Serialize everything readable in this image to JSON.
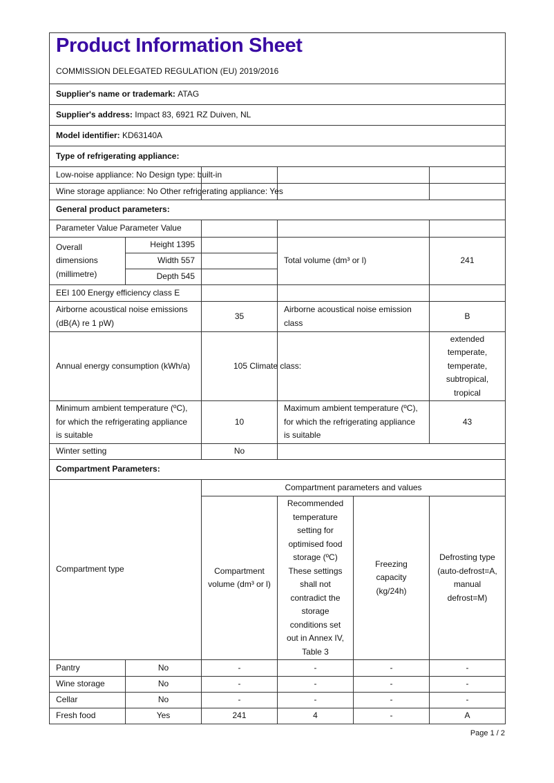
{
  "title": "Product Information Sheet",
  "subtitle": "COMMISSION DELEGATED REGULATION (EU) 2019/2016",
  "supplier_name": {
    "label": "Supplier's name or trademark:",
    "value": "ATAG"
  },
  "supplier_address": {
    "label": "Supplier's address:",
    "value": "Impact 83, 6921 RZ Duiven, NL"
  },
  "model": {
    "label": "Model identifier:",
    "value": "KD63140A"
  },
  "type_heading": "Type of refrigerating appliance:",
  "type_rows": [
    "Low-noise appliance: No Design type: built-in",
    "Wine storage appliance: No Other refrigerating appliance: Yes"
  ],
  "general_heading": "General product parameters:",
  "param_header": "Parameter Value Parameter Value",
  "dimensions": {
    "label": "Overall dimensions (millimetre)",
    "height": "Height 1395",
    "width": "Width 557",
    "depth": "Depth 545"
  },
  "total_volume": {
    "label": "Total volume (dm³ or l)",
    "value": "241"
  },
  "eei": "EEI 100 Energy efficiency class E",
  "noise": {
    "label": "Airborne acoustical noise emissions (dB(A) re 1 pW)",
    "value": "35",
    "class_label": "Airborne acoustical noise emission class",
    "class_value": "B"
  },
  "energy": {
    "label": "Annual energy consumption (kWh/a)",
    "value": "105 Climate class:",
    "climate": "extended temperate, temperate, subtropical, tropical"
  },
  "min_temp": {
    "label": "Minimum ambient temperature (ºC), for which the refrigerating appliance is suitable",
    "value": "10"
  },
  "max_temp": {
    "label": "Maximum ambient temperature (ºC), for which the refrigerating appliance is suitable",
    "value": "43"
  },
  "winter": {
    "label": "Winter setting",
    "value": "No"
  },
  "compartment_heading": "Compartment Parameters:",
  "compartment": {
    "type_label": "Compartment type",
    "group_header": "Compartment parameters and values",
    "columns": [
      "Compartment volume (dm³ or l)",
      "Recommended temperature setting for optimised food storage (ºC) These settings shall not contradict the storage conditions set out in Annex IV, Table 3",
      "Freezing capacity (kg/24h)",
      "Defrosting type (auto-defrost=A, manual defrost=M)"
    ],
    "rows": [
      [
        "Pantry",
        "No",
        "-",
        "-",
        "-",
        "-"
      ],
      [
        "Wine storage",
        "No",
        "-",
        "-",
        "-",
        "-"
      ],
      [
        "Cellar",
        "No",
        "-",
        "-",
        "-",
        "-"
      ],
      [
        "Fresh food",
        "Yes",
        "241",
        "4",
        "-",
        "A"
      ]
    ]
  },
  "page_number": "Page 1 / 2",
  "colors": {
    "title": "#3a0ca3"
  }
}
